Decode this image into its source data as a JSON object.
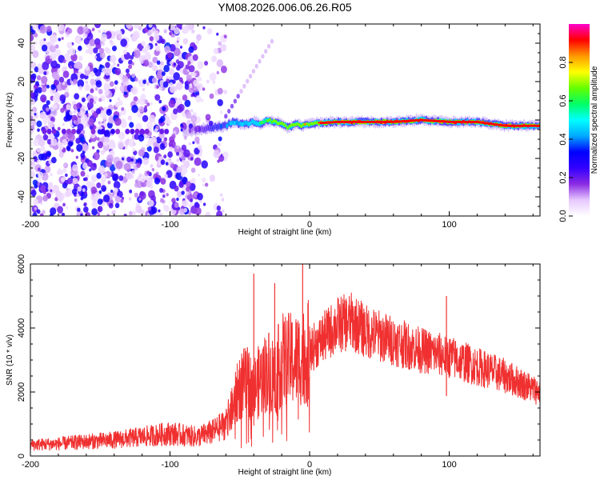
{
  "title": "YM08.2026.006.06.26.R05",
  "chart_data": [
    {
      "type": "heatmap",
      "xlabel": "Height of straight line (km)",
      "ylabel": "Frequency (Hz)",
      "xlim": [
        -200,
        165
      ],
      "ylim": [
        -50,
        50
      ],
      "x_ticks": [
        -200,
        -100,
        0,
        100
      ],
      "y_ticks": [
        -40,
        -20,
        0,
        20,
        40
      ],
      "colorbar": {
        "label": "Normalized spectral amplitude",
        "range": [
          0,
          1
        ],
        "ticks": [
          "0.0",
          "0.2",
          "0.4",
          "0.6",
          "0.8"
        ],
        "colors": [
          "#ffffff",
          "#e6c8ff",
          "#8a2be2",
          "#3300ff",
          "#0000ff",
          "#00aaff",
          "#00ffff",
          "#00ff66",
          "#66ff00",
          "#ffff00",
          "#ff9900",
          "#ff0000",
          "#ff00cc"
        ]
      },
      "ridge": {
        "height_km": [
          -90,
          -80,
          -70,
          -60,
          -55,
          -50,
          -45,
          -40,
          -35,
          -30,
          -25,
          -20,
          -15,
          -10,
          -5,
          0,
          20,
          40,
          60,
          80,
          100,
          120,
          140,
          165
        ],
        "frequency_hz": [
          -6,
          -5,
          -4,
          -3,
          -1,
          -2,
          -2,
          -1,
          -2,
          0,
          -1,
          -2,
          -4,
          -2,
          -3,
          -2,
          -1,
          -1,
          -1,
          0,
          -1,
          -1,
          -3,
          -3
        ],
        "amplitude": [
          0.2,
          0.2,
          0.3,
          0.4,
          0.5,
          0.45,
          0.5,
          0.55,
          0.6,
          0.7,
          0.75,
          0.8,
          0.8,
          0.75,
          0.8,
          0.82,
          0.9,
          0.95,
          0.95,
          0.88,
          0.9,
          0.95,
          0.9,
          0.85
        ]
      },
      "noise_region_km": [
        -200,
        -80
      ]
    },
    {
      "type": "line",
      "xlabel": "Height of straight line (km)",
      "ylabel": "SNR (10 * v/v)",
      "xlim": [
        -200,
        165
      ],
      "ylim": [
        0,
        6000
      ],
      "x_ticks": [
        -200,
        -100,
        0,
        100
      ],
      "y_ticks": [
        0,
        2000,
        4000,
        6000
      ],
      "color": "#f03030",
      "series": [
        {
          "name": "SNR",
          "x": [
            -200,
            -180,
            -160,
            -140,
            -120,
            -100,
            -80,
            -70,
            -60,
            -55,
            -50,
            -45,
            -40,
            -35,
            -30,
            -25,
            -20,
            -15,
            -10,
            -5,
            0,
            10,
            20,
            30,
            40,
            60,
            80,
            100,
            120,
            140,
            160,
            165
          ],
          "y": [
            350,
            380,
            450,
            500,
            600,
            700,
            600,
            750,
            1000,
            1500,
            2200,
            2300,
            2100,
            2400,
            2700,
            2500,
            3000,
            3000,
            3000,
            3100,
            3300,
            3700,
            4100,
            4200,
            3900,
            3600,
            3300,
            3100,
            2800,
            2500,
            2100,
            2000
          ]
        }
      ],
      "spikes": [
        {
          "x": -40,
          "y": 5700
        },
        {
          "x": -25,
          "y": 5400
        },
        {
          "x": -5,
          "y": 6000
        },
        {
          "x": 98,
          "y": 5000
        }
      ]
    }
  ]
}
